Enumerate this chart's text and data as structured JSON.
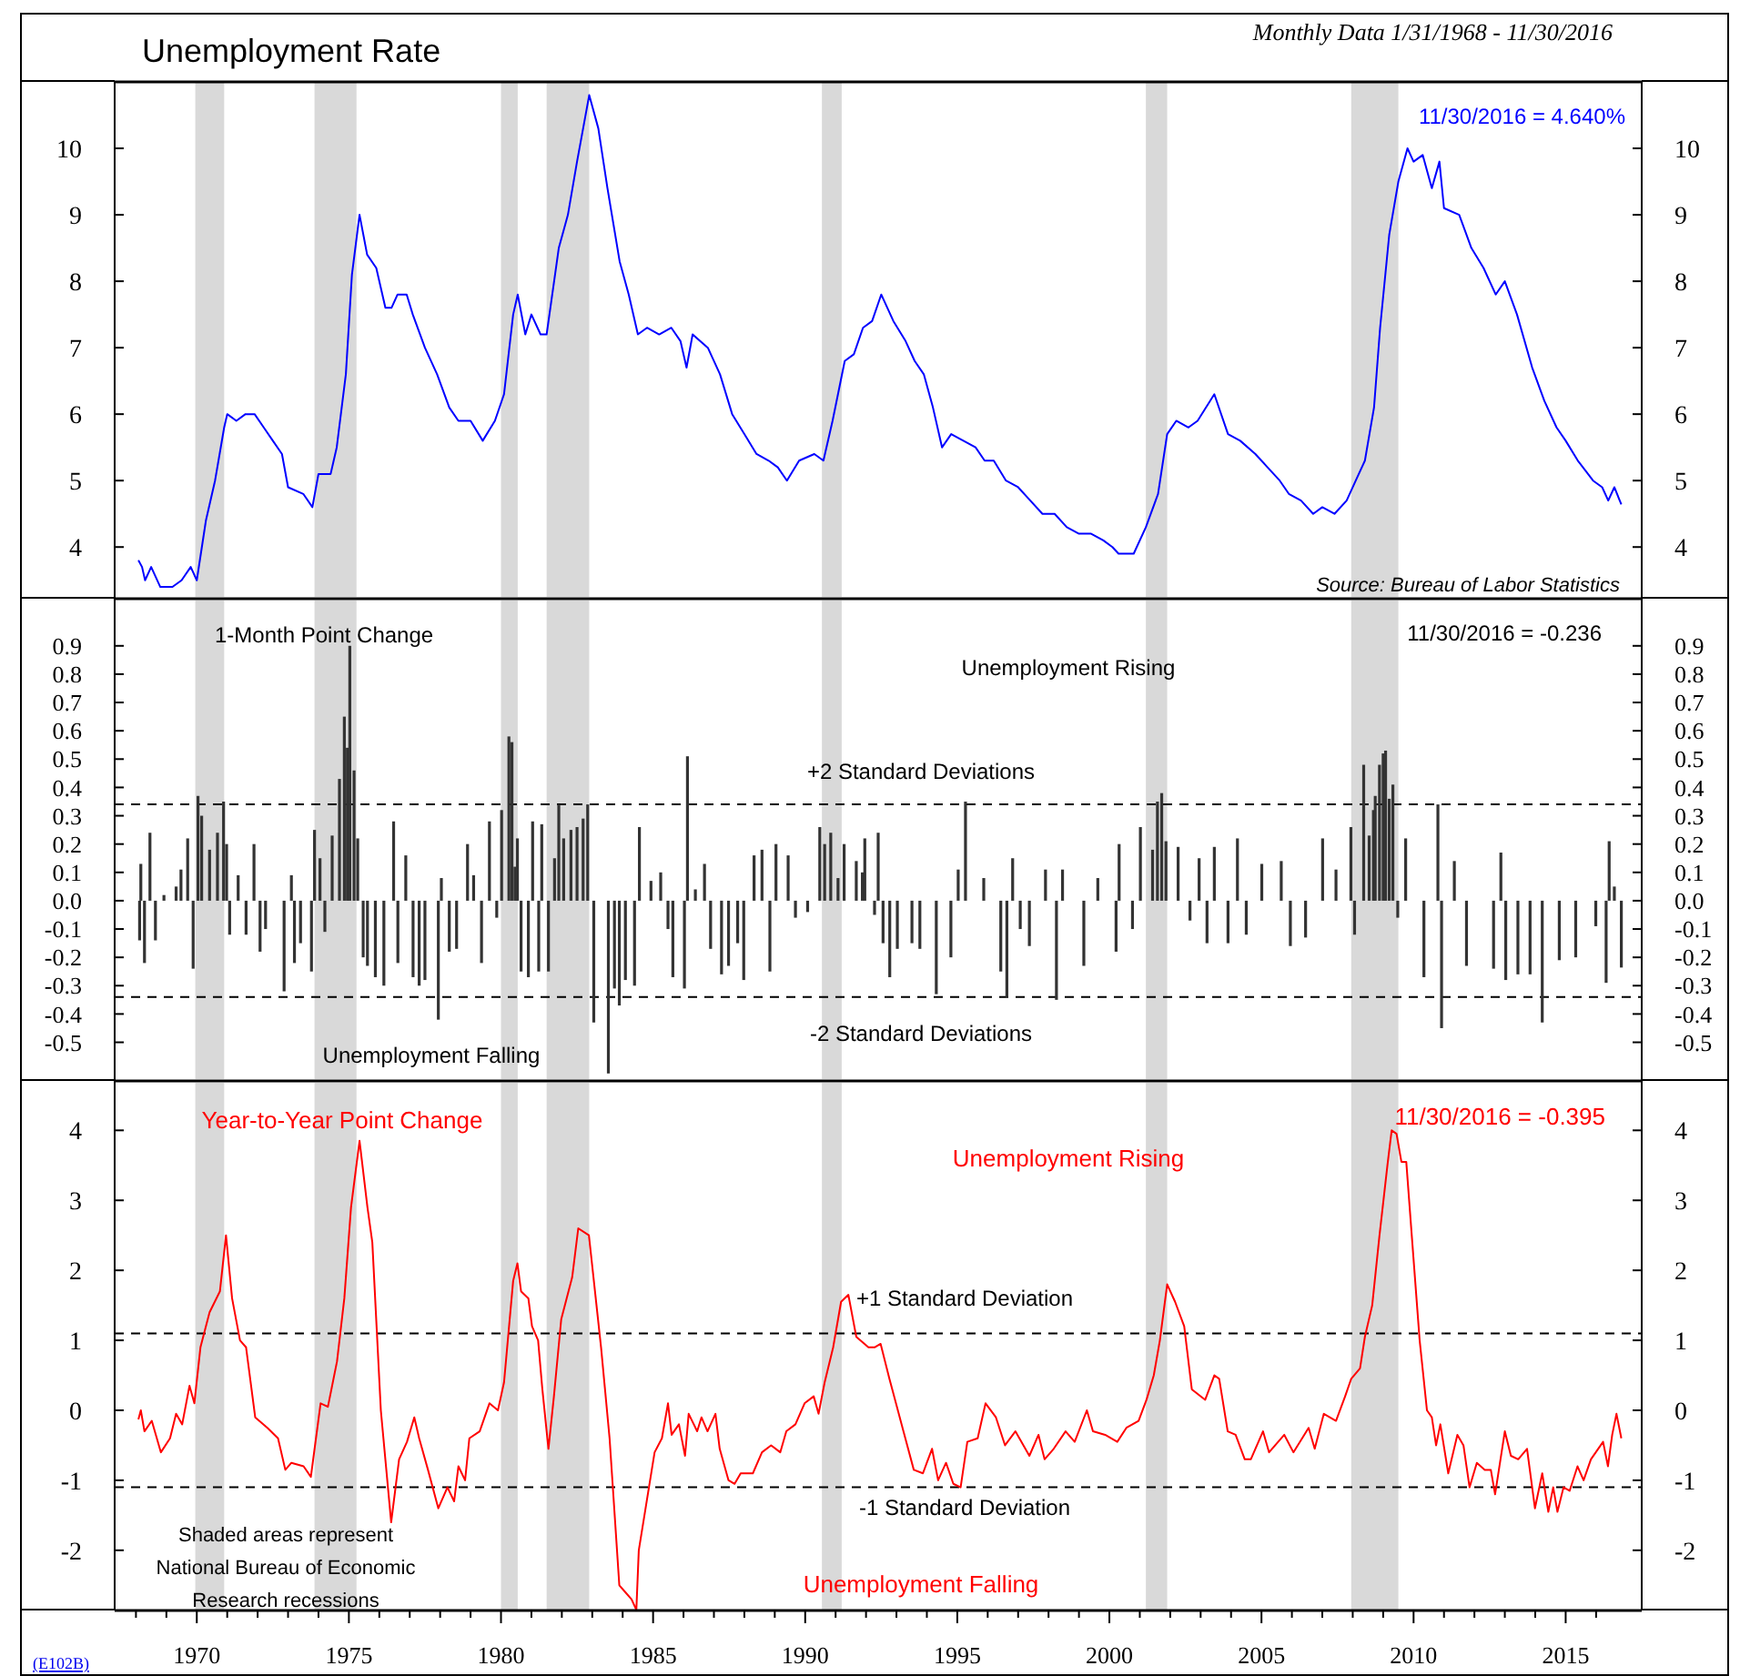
{
  "chart_data": [
    {
      "type": "line",
      "title": "Unemployment Rate",
      "subtitle": "Monthly Data 1/31/1968 - 11/30/2016",
      "annotations": [
        "11/30/2016 = 4.640%",
        "Source: Bureau of Labor Statistics"
      ],
      "x": [
        1968.08,
        1968.2,
        1968.3,
        1968.5,
        1968.8,
        1969.2,
        1969.5,
        1969.8,
        1970.0,
        1970.3,
        1970.6,
        1970.9,
        1971.0,
        1971.3,
        1971.6,
        1971.9,
        1972.2,
        1972.5,
        1972.8,
        1973.0,
        1973.5,
        1973.8,
        1974.0,
        1974.4,
        1974.6,
        1974.9,
        1975.1,
        1975.35,
        1975.6,
        1975.9,
        1976.2,
        1976.4,
        1976.6,
        1976.9,
        1977.1,
        1977.5,
        1977.9,
        1978.3,
        1978.6,
        1979.0,
        1979.4,
        1979.8,
        1980.1,
        1980.4,
        1980.55,
        1980.8,
        1981.0,
        1981.3,
        1981.5,
        1981.9,
        1982.2,
        1982.5,
        1982.9,
        1983.2,
        1983.5,
        1983.9,
        1984.2,
        1984.5,
        1984.8,
        1985.2,
        1985.6,
        1985.9,
        1986.1,
        1986.3,
        1986.8,
        1987.2,
        1987.6,
        1988.0,
        1988.4,
        1988.8,
        1989.1,
        1989.4,
        1989.8,
        1990.3,
        1990.6,
        1990.9,
        1991.3,
        1991.6,
        1991.9,
        1992.2,
        1992.5,
        1992.9,
        1993.3,
        1993.6,
        1993.9,
        1994.2,
        1994.5,
        1994.8,
        1995.2,
        1995.6,
        1995.9,
        1996.2,
        1996.6,
        1997.0,
        1997.4,
        1997.8,
        1998.2,
        1998.6,
        1999.0,
        1999.4,
        1999.8,
        2000.1,
        2000.3,
        2000.8,
        2001.2,
        2001.6,
        2001.9,
        2002.2,
        2002.6,
        2002.9,
        2003.45,
        2003.9,
        2004.3,
        2004.8,
        2005.2,
        2005.6,
        2005.9,
        2006.3,
        2006.7,
        2007.0,
        2007.4,
        2007.8,
        2008.1,
        2008.4,
        2008.7,
        2008.9,
        2009.2,
        2009.5,
        2009.8,
        2010.0,
        2010.3,
        2010.6,
        2010.85,
        2011.0,
        2011.5,
        2011.9,
        2012.3,
        2012.7,
        2013.0,
        2013.4,
        2013.9,
        2014.3,
        2014.7,
        2015.0,
        2015.4,
        2015.9,
        2016.2,
        2016.4,
        2016.6,
        2016.83
      ],
      "series": [
        {
          "color": "#0000ff",
          "values": [
            3.8,
            3.7,
            3.5,
            3.7,
            3.4,
            3.4,
            3.5,
            3.7,
            3.5,
            4.4,
            5.0,
            5.8,
            6.0,
            5.9,
            6.0,
            6.0,
            5.8,
            5.6,
            5.4,
            4.9,
            4.8,
            4.6,
            5.1,
            5.1,
            5.5,
            6.6,
            8.1,
            9.0,
            8.4,
            8.2,
            7.6,
            7.6,
            7.8,
            7.8,
            7.5,
            7.0,
            6.6,
            6.1,
            5.9,
            5.9,
            5.6,
            5.9,
            6.3,
            7.5,
            7.8,
            7.2,
            7.5,
            7.2,
            7.2,
            8.5,
            9.0,
            9.8,
            10.8,
            10.3,
            9.4,
            8.3,
            7.8,
            7.2,
            7.3,
            7.2,
            7.3,
            7.1,
            6.7,
            7.2,
            7.0,
            6.6,
            6.0,
            5.7,
            5.4,
            5.3,
            5.2,
            5.0,
            5.3,
            5.4,
            5.3,
            5.9,
            6.8,
            6.9,
            7.3,
            7.4,
            7.8,
            7.4,
            7.1,
            6.8,
            6.6,
            6.1,
            5.5,
            5.7,
            5.6,
            5.5,
            5.3,
            5.3,
            5.0,
            4.9,
            4.7,
            4.5,
            4.5,
            4.3,
            4.2,
            4.2,
            4.1,
            4.0,
            3.9,
            3.9,
            4.3,
            4.8,
            5.7,
            5.9,
            5.8,
            5.9,
            6.3,
            5.7,
            5.6,
            5.4,
            5.2,
            5.0,
            4.8,
            4.7,
            4.5,
            4.6,
            4.5,
            4.7,
            5.0,
            5.3,
            6.1,
            7.3,
            8.7,
            9.5,
            10.0,
            9.8,
            9.9,
            9.4,
            9.8,
            9.1,
            9.0,
            8.5,
            8.2,
            7.8,
            8.0,
            7.5,
            6.7,
            6.2,
            5.8,
            5.6,
            5.3,
            5.0,
            4.9,
            4.7,
            4.9,
            4.64
          ]
        }
      ],
      "xlim": [
        1967.3,
        2017.5
      ],
      "ylim": [
        3.25,
        11
      ],
      "yticks": [
        4,
        5,
        6,
        7,
        8,
        9,
        10
      ],
      "y2lim": [
        3.25,
        11
      ],
      "y2ticks": [
        4,
        5,
        6,
        7,
        8,
        9,
        10
      ],
      "tick_labels": "y",
      "bands": [
        {
          "axis": "x",
          "from": 1969.95,
          "to": 1970.9,
          "color": "#d9d9d9"
        },
        {
          "axis": "x",
          "from": 1973.87,
          "to": 1975.25,
          "color": "#d9d9d9"
        },
        {
          "axis": "x",
          "from": 1980.0,
          "to": 1980.55,
          "color": "#d9d9d9"
        },
        {
          "axis": "x",
          "from": 1981.5,
          "to": 1982.9,
          "color": "#d9d9d9"
        },
        {
          "axis": "x",
          "from": 1990.55,
          "to": 1991.2,
          "color": "#d9d9d9"
        },
        {
          "axis": "x",
          "from": 2001.2,
          "to": 2001.9,
          "color": "#d9d9d9"
        },
        {
          "axis": "x",
          "from": 2007.95,
          "to": 2009.5,
          "color": "#d9d9d9"
        }
      ]
    },
    {
      "type": "bar",
      "title": "1-Month Point Change",
      "annotations": [
        "11/30/2016 = -0.236",
        "Unemployment Rising",
        "Unemployment Falling"
      ],
      "x": [
        1968.12,
        1968.16,
        1968.28,
        1968.46,
        1968.64,
        1968.92,
        1969.32,
        1969.48,
        1969.7,
        1969.88,
        1970.04,
        1970.16,
        1970.42,
        1970.68,
        1970.88,
        1970.98,
        1971.08,
        1971.36,
        1971.62,
        1971.88,
        1972.08,
        1972.26,
        1972.87,
        1973.11,
        1973.21,
        1973.41,
        1973.77,
        1973.87,
        1974.05,
        1974.21,
        1974.45,
        1974.69,
        1974.85,
        1974.95,
        1975.03,
        1975.17,
        1975.29,
        1975.47,
        1975.61,
        1975.87,
        1976.15,
        1976.47,
        1976.61,
        1976.87,
        1977.11,
        1977.31,
        1977.5,
        1977.94,
        1978.04,
        1978.3,
        1978.54,
        1978.9,
        1979.1,
        1979.36,
        1979.62,
        1979.86,
        1980.02,
        1980.26,
        1980.36,
        1980.46,
        1980.54,
        1980.66,
        1980.9,
        1981.04,
        1981.24,
        1981.34,
        1981.56,
        1981.76,
        1981.9,
        1982.06,
        1982.3,
        1982.5,
        1982.7,
        1982.85,
        1983.05,
        1983.53,
        1983.73,
        1983.89,
        1984.09,
        1984.39,
        1984.55,
        1984.93,
        1985.25,
        1985.49,
        1985.65,
        1986.03,
        1986.13,
        1986.39,
        1986.69,
        1986.89,
        1987.25,
        1987.48,
        1987.78,
        1987.98,
        1988.32,
        1988.58,
        1988.84,
        1989.04,
        1989.44,
        1989.68,
        1990.08,
        1990.48,
        1990.64,
        1990.84,
        1991.08,
        1991.28,
        1991.68,
        1991.88,
        1991.96,
        1992.28,
        1992.4,
        1992.56,
        1992.78,
        1993.03,
        1993.51,
        1993.77,
        1994.31,
        1994.79,
        1995.03,
        1995.27,
        1995.87,
        1996.43,
        1996.63,
        1996.82,
        1997.07,
        1997.37,
        1997.9,
        1998.26,
        1998.46,
        1999.16,
        1999.62,
        2000.22,
        2000.32,
        2000.76,
        2001.02,
        2001.42,
        2001.58,
        2001.72,
        2001.86,
        2002.26,
        2002.65,
        2002.95,
        2003.21,
        2003.45,
        2003.9,
        2004.21,
        2004.5,
        2005.01,
        2005.65,
        2005.95,
        2006.45,
        2007.01,
        2007.45,
        2007.94,
        2008.06,
        2008.36,
        2008.54,
        2008.68,
        2008.74,
        2008.88,
        2009.0,
        2009.08,
        2009.2,
        2009.32,
        2009.48,
        2009.74,
        2010.34,
        2010.8,
        2010.92,
        2011.34,
        2011.74,
        2012.63,
        2012.87,
        2013.03,
        2013.43,
        2013.83,
        2014.23,
        2014.79,
        2015.33,
        2015.99,
        2016.33,
        2016.43,
        2016.6,
        2016.83
      ],
      "series": [
        {
          "color": "#333333",
          "values": [
            -0.14,
            0.13,
            -0.22,
            0.24,
            -0.14,
            0.02,
            0.05,
            0.11,
            0.22,
            -0.24,
            0.37,
            0.3,
            0.18,
            0.24,
            0.35,
            0.2,
            -0.12,
            0.09,
            -0.12,
            0.2,
            -0.18,
            -0.1,
            -0.32,
            0.09,
            -0.22,
            -0.15,
            -0.25,
            0.25,
            0.15,
            -0.11,
            0.23,
            0.43,
            0.65,
            0.54,
            0.9,
            0.46,
            0.22,
            -0.2,
            -0.23,
            -0.27,
            -0.3,
            0.28,
            -0.22,
            0.16,
            -0.27,
            -0.3,
            -0.28,
            -0.42,
            0.08,
            -0.18,
            -0.17,
            0.2,
            0.09,
            -0.22,
            0.28,
            -0.06,
            0.32,
            0.58,
            0.56,
            0.12,
            0.22,
            -0.25,
            -0.27,
            0.28,
            -0.25,
            0.27,
            -0.25,
            0.15,
            0.34,
            0.22,
            0.25,
            0.26,
            0.29,
            0.34,
            -0.43,
            -0.61,
            -0.31,
            -0.37,
            -0.28,
            -0.3,
            0.26,
            0.07,
            0.1,
            -0.1,
            -0.27,
            -0.31,
            0.51,
            0.04,
            0.13,
            -0.17,
            -0.26,
            -0.23,
            -0.15,
            -0.28,
            0.16,
            0.18,
            -0.25,
            0.2,
            0.16,
            -0.06,
            -0.04,
            0.26,
            0.2,
            0.24,
            0.08,
            0.2,
            0.14,
            0.1,
            0.22,
            -0.05,
            0.24,
            -0.15,
            -0.27,
            -0.17,
            -0.15,
            -0.17,
            -0.33,
            -0.2,
            0.11,
            0.35,
            0.08,
            -0.25,
            -0.34,
            0.15,
            -0.1,
            -0.16,
            0.11,
            -0.35,
            0.11,
            -0.23,
            0.08,
            -0.18,
            0.2,
            -0.1,
            0.26,
            0.18,
            0.35,
            0.38,
            0.21,
            0.19,
            -0.07,
            0.15,
            -0.15,
            0.19,
            -0.15,
            0.22,
            -0.12,
            0.13,
            0.14,
            -0.16,
            -0.13,
            0.22,
            0.11,
            0.26,
            -0.12,
            0.48,
            0.23,
            0.32,
            0.37,
            0.48,
            0.52,
            0.53,
            0.36,
            0.41,
            -0.06,
            0.22,
            -0.27,
            0.34,
            -0.45,
            0.14,
            -0.23,
            -0.24,
            0.17,
            -0.28,
            -0.26,
            -0.26,
            -0.43,
            -0.21,
            -0.2,
            -0.09,
            -0.29,
            0.21,
            0.05,
            -0.236
          ]
        }
      ],
      "xlim": [
        1967.3,
        2017.5
      ],
      "ylim": [
        -0.63,
        1.06
      ],
      "yticks": [
        -0.5,
        -0.4,
        -0.3,
        -0.2,
        -0.1,
        {
          "value": 0,
          "label": "0.0"
        },
        0.1,
        0.2,
        0.3,
        0.4,
        0.5,
        0.6,
        0.7,
        0.8,
        0.9
      ],
      "y2lim": [
        -0.63,
        1.06
      ],
      "y2ticks": [
        -0.5,
        -0.4,
        -0.3,
        -0.2,
        -0.1,
        {
          "value": 0,
          "label": "0.0"
        },
        0.1,
        0.2,
        0.3,
        0.4,
        0.5,
        0.6,
        0.7,
        0.8,
        0.9
      ],
      "tick_labels": "y",
      "ref_lines": [
        {
          "axis": "y",
          "value": 0.34,
          "label": "+2 Standard Deviations",
          "color": "#000000",
          "line_style": "dashed"
        },
        {
          "axis": "y",
          "value": -0.34,
          "label": "-2 Standard Deviations",
          "color": "#000000",
          "line_style": "dashed"
        }
      ],
      "bands": [
        {
          "axis": "x",
          "from": 1969.95,
          "to": 1970.9,
          "color": "#d9d9d9"
        },
        {
          "axis": "x",
          "from": 1973.87,
          "to": 1975.25,
          "color": "#d9d9d9"
        },
        {
          "axis": "x",
          "from": 1980.0,
          "to": 1980.55,
          "color": "#d9d9d9"
        },
        {
          "axis": "x",
          "from": 1981.5,
          "to": 1982.9,
          "color": "#d9d9d9"
        },
        {
          "axis": "x",
          "from": 1990.55,
          "to": 1991.2,
          "color": "#d9d9d9"
        },
        {
          "axis": "x",
          "from": 2001.2,
          "to": 2001.9,
          "color": "#d9d9d9"
        },
        {
          "axis": "x",
          "from": 2007.95,
          "to": 2009.5,
          "color": "#d9d9d9"
        }
      ]
    },
    {
      "type": "line",
      "title": "Year-to-Year Point Change",
      "annotations": [
        "11/30/2016 = -0.395",
        "Unemployment Rising",
        "Unemployment Falling",
        "Shaded areas represent National Bureau of Economic Research recessions",
        "(E102B)"
      ],
      "x": [
        1968.08,
        1968.16,
        1968.28,
        1968.52,
        1968.82,
        1969.12,
        1969.32,
        1969.52,
        1969.76,
        1969.92,
        1970.12,
        1970.42,
        1970.76,
        1970.96,
        1971.16,
        1971.42,
        1971.62,
        1971.92,
        1972.32,
        1972.67,
        1972.91,
        1973.11,
        1973.51,
        1973.75,
        1974.07,
        1974.31,
        1974.61,
        1974.85,
        1975.07,
        1975.35,
        1975.61,
        1975.77,
        1976.05,
        1976.39,
        1976.65,
        1976.91,
        1977.15,
        1977.31,
        1977.6,
        1977.94,
        1978.24,
        1978.46,
        1978.6,
        1978.82,
        1978.96,
        1979.3,
        1979.62,
        1979.9,
        1980.1,
        1980.4,
        1980.54,
        1980.66,
        1980.9,
        1981.02,
        1981.22,
        1981.36,
        1981.56,
        1981.74,
        1981.98,
        1982.34,
        1982.54,
        1982.89,
        1983.29,
        1983.57,
        1983.89,
        1984.09,
        1984.29,
        1984.45,
        1984.53,
        1985.05,
        1985.29,
        1985.49,
        1985.61,
        1985.85,
        1986.05,
        1986.17,
        1986.45,
        1986.59,
        1986.79,
        1987.05,
        1987.19,
        1987.48,
        1987.68,
        1987.88,
        1988.28,
        1988.58,
        1988.88,
        1989.18,
        1989.38,
        1989.68,
        1989.98,
        1990.28,
        1990.44,
        1990.64,
        1990.92,
        1991.18,
        1991.42,
        1991.68,
        1992.08,
        1992.28,
        1992.48,
        1992.77,
        1993.23,
        1993.57,
        1993.87,
        1994.17,
        1994.37,
        1994.63,
        1994.87,
        1995.11,
        1995.33,
        1995.67,
        1995.93,
        1996.27,
        1996.57,
        1996.91,
        1997.37,
        1997.67,
        1997.87,
        1998.17,
        1998.56,
        1998.86,
        1999.26,
        1999.46,
        1999.86,
        2000.26,
        2000.56,
        2000.96,
        2001.22,
        2001.46,
        2001.66,
        2001.9,
        2002.16,
        2002.46,
        2002.71,
        2003.15,
        2003.45,
        2003.61,
        2003.89,
        2004.15,
        2004.45,
        2004.65,
        2005.05,
        2005.25,
        2005.75,
        2006.05,
        2006.55,
        2006.75,
        2007.05,
        2007.45,
        2007.75,
        2007.95,
        2008.24,
        2008.4,
        2008.64,
        2008.88,
        2009.14,
        2009.28,
        2009.44,
        2009.6,
        2009.76,
        2009.94,
        2010.2,
        2010.44,
        2010.6,
        2010.74,
        2010.88,
        2011.14,
        2011.44,
        2011.64,
        2011.84,
        2012.08,
        2012.34,
        2012.54,
        2012.68,
        2013.0,
        2013.2,
        2013.44,
        2013.73,
        2013.99,
        2014.23,
        2014.43,
        2014.59,
        2014.73,
        2014.93,
        2015.13,
        2015.39,
        2015.59,
        2015.83,
        2016.23,
        2016.39,
        2016.53,
        2016.67,
        2016.83
      ],
      "series": [
        {
          "color": "#ff0000",
          "values": [
            -0.13,
            0.0,
            -0.3,
            -0.15,
            -0.6,
            -0.4,
            -0.05,
            -0.2,
            0.35,
            0.1,
            0.9,
            1.4,
            1.7,
            2.5,
            1.6,
            1.0,
            0.9,
            -0.1,
            -0.25,
            -0.4,
            -0.85,
            -0.75,
            -0.8,
            -0.95,
            0.1,
            0.05,
            0.7,
            1.6,
            2.9,
            3.85,
            2.9,
            2.4,
            0.0,
            -1.6,
            -0.7,
            -0.45,
            -0.1,
            -0.4,
            -0.85,
            -1.4,
            -1.1,
            -1.3,
            -0.8,
            -1.0,
            -0.4,
            -0.3,
            0.1,
            0.0,
            0.4,
            1.85,
            2.1,
            1.7,
            1.6,
            1.2,
            1.0,
            0.3,
            -0.55,
            0.2,
            1.3,
            1.9,
            2.6,
            2.5,
            0.9,
            -0.4,
            -2.5,
            -2.6,
            -2.7,
            -2.85,
            -2.0,
            -0.6,
            -0.4,
            0.1,
            -0.35,
            -0.2,
            -0.65,
            -0.05,
            -0.3,
            -0.1,
            -0.3,
            -0.05,
            -0.55,
            -1.0,
            -1.05,
            -0.9,
            -0.9,
            -0.6,
            -0.5,
            -0.6,
            -0.3,
            -0.2,
            0.1,
            0.2,
            -0.05,
            0.4,
            0.9,
            1.55,
            1.65,
            1.05,
            0.9,
            0.9,
            0.95,
            0.45,
            -0.3,
            -0.85,
            -0.9,
            -0.55,
            -1.0,
            -0.75,
            -1.05,
            -1.1,
            -0.45,
            -0.4,
            0.1,
            -0.1,
            -0.5,
            -0.3,
            -0.65,
            -0.35,
            -0.7,
            -0.55,
            -0.3,
            -0.45,
            0.0,
            -0.3,
            -0.35,
            -0.45,
            -0.25,
            -0.15,
            0.15,
            0.5,
            1.0,
            1.8,
            1.55,
            1.2,
            0.3,
            0.15,
            0.5,
            0.45,
            -0.3,
            -0.35,
            -0.7,
            -0.7,
            -0.3,
            -0.6,
            -0.35,
            -0.6,
            -0.25,
            -0.55,
            -0.05,
            -0.15,
            0.2,
            0.45,
            0.6,
            1.05,
            1.5,
            2.5,
            3.5,
            4.0,
            3.95,
            3.55,
            3.55,
            2.5,
            1.0,
            0.0,
            -0.1,
            -0.5,
            -0.2,
            -0.9,
            -0.35,
            -0.5,
            -1.1,
            -0.75,
            -0.85,
            -0.85,
            -1.2,
            -0.3,
            -0.65,
            -0.7,
            -0.55,
            -1.4,
            -0.9,
            -1.45,
            -1.1,
            -1.45,
            -1.1,
            -1.15,
            -0.8,
            -1.0,
            -0.7,
            -0.45,
            -0.8,
            -0.35,
            -0.05,
            -0.4
          ]
        }
      ],
      "xlim": [
        1967.3,
        2017.5
      ],
      "xticks": [
        {
          "value": 1968,
          "label": null
        },
        {
          "value": 1969,
          "label": null
        },
        1970,
        {
          "value": 1971,
          "label": null
        },
        {
          "value": 1972,
          "label": null
        },
        {
          "value": 1973,
          "label": null
        },
        {
          "value": 1974,
          "label": null
        },
        1975,
        {
          "value": 1976,
          "label": null
        },
        {
          "value": 1977,
          "label": null
        },
        {
          "value": 1978,
          "label": null
        },
        {
          "value": 1979,
          "label": null
        },
        1980,
        {
          "value": 1981,
          "label": null
        },
        {
          "value": 1982,
          "label": null
        },
        {
          "value": 1983,
          "label": null
        },
        {
          "value": 1984,
          "label": null
        },
        1985,
        {
          "value": 1986,
          "label": null
        },
        {
          "value": 1987,
          "label": null
        },
        {
          "value": 1988,
          "label": null
        },
        {
          "value": 1989,
          "label": null
        },
        1990,
        {
          "value": 1991,
          "label": null
        },
        {
          "value": 1992,
          "label": null
        },
        {
          "value": 1993,
          "label": null
        },
        {
          "value": 1994,
          "label": null
        },
        1995,
        {
          "value": 1996,
          "label": null
        },
        {
          "value": 1997,
          "label": null
        },
        {
          "value": 1998,
          "label": null
        },
        {
          "value": 1999,
          "label": null
        },
        2000,
        {
          "value": 2001,
          "label": null
        },
        {
          "value": 2002,
          "label": null
        },
        {
          "value": 2003,
          "label": null
        },
        {
          "value": 2004,
          "label": null
        },
        2005,
        {
          "value": 2006,
          "label": null
        },
        {
          "value": 2007,
          "label": null
        },
        {
          "value": 2008,
          "label": null
        },
        {
          "value": 2009,
          "label": null
        },
        2010,
        {
          "value": 2011,
          "label": null
        },
        {
          "value": 2012,
          "label": null
        },
        {
          "value": 2013,
          "label": null
        },
        {
          "value": 2014,
          "label": null
        },
        2015,
        {
          "value": 2016,
          "label": null
        }
      ],
      "ylim": [
        -2.86,
        4.68
      ],
      "yticks": [
        -2,
        -1,
        0,
        1,
        2,
        3,
        4
      ],
      "y2lim": [
        -2.86,
        4.68
      ],
      "y2ticks": [
        -2,
        -1,
        0,
        1,
        2,
        3,
        4
      ],
      "ref_lines": [
        {
          "axis": "y",
          "value": 1.1,
          "label": "+1 Standard Deviation",
          "color": "#000000",
          "line_style": "dashed"
        },
        {
          "axis": "y",
          "value": -1.1,
          "label": "-1 Standard Deviation",
          "color": "#000000",
          "line_style": "dashed"
        }
      ],
      "bands": [
        {
          "axis": "x",
          "from": 1969.95,
          "to": 1970.9,
          "color": "#d9d9d9"
        },
        {
          "axis": "x",
          "from": 1973.87,
          "to": 1975.25,
          "color": "#d9d9d9"
        },
        {
          "axis": "x",
          "from": 1980.0,
          "to": 1980.55,
          "color": "#d9d9d9"
        },
        {
          "axis": "x",
          "from": 1981.5,
          "to": 1982.9,
          "color": "#d9d9d9"
        },
        {
          "axis": "x",
          "from": 1990.55,
          "to": 1991.2,
          "color": "#d9d9d9"
        },
        {
          "axis": "x",
          "from": 2001.2,
          "to": 2001.9,
          "color": "#d9d9d9"
        },
        {
          "axis": "x",
          "from": 2007.95,
          "to": 2009.5,
          "color": "#d9d9d9"
        }
      ]
    }
  ]
}
